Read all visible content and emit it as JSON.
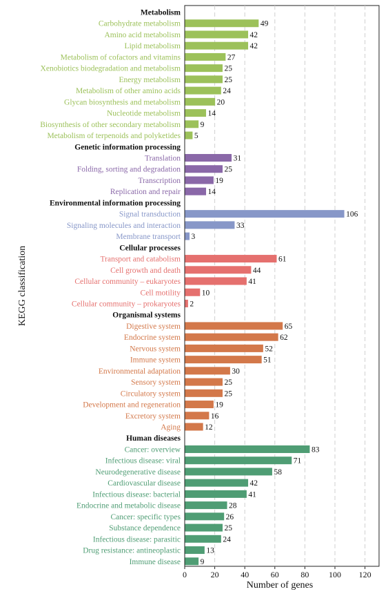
{
  "chart_data": {
    "type": "bar",
    "orientation": "horizontal",
    "xlabel": "Number of genes",
    "ylabel": "KEGG classification",
    "xlim": [
      0,
      130
    ],
    "xticks": [
      "0",
      "20",
      "40",
      "60",
      "80",
      "100",
      "120"
    ],
    "grid": "vertical dashed",
    "colors": {
      "Metabolism": "#9cc15a",
      "Genetic information processing": "#8a68a8",
      "Environmental information processing": "#8797c8",
      "Cellular processes": "#e5706e",
      "Organismal systems": "#d3784a",
      "Human diseases": "#4f9d74"
    },
    "groups": [
      {
        "name": "Metabolism",
        "items": [
          {
            "label": "Carbohydrate metabolism",
            "value": 49
          },
          {
            "label": "Amino acid metabolism",
            "value": 42
          },
          {
            "label": "Lipid metabolism",
            "value": 42
          },
          {
            "label": "Metabolism of cofactors and vitamins",
            "value": 27
          },
          {
            "label": "Xenobiotics biodegradation and metabolism",
            "value": 25
          },
          {
            "label": "Energy metabolism",
            "value": 25
          },
          {
            "label": "Metabolism of other amino acids",
            "value": 24
          },
          {
            "label": "Glycan biosynthesis and metabolism",
            "value": 20
          },
          {
            "label": "Nucleotide metabolism",
            "value": 14
          },
          {
            "label": "Biosynthesis of other secondary metabolism",
            "value": 9
          },
          {
            "label": "Metabolism of terpenoids and polyketides",
            "value": 5
          }
        ]
      },
      {
        "name": "Genetic information processing",
        "items": [
          {
            "label": "Translation",
            "value": 31
          },
          {
            "label": "Folding, sorting and degradation",
            "value": 25
          },
          {
            "label": "Transcription",
            "value": 19
          },
          {
            "label": "Replication and repair",
            "value": 14
          }
        ]
      },
      {
        "name": "Environmental information processing",
        "items": [
          {
            "label": "Signal transduction",
            "value": 106
          },
          {
            "label": "Signaling molecules and interaction",
            "value": 33
          },
          {
            "label": "Membrane transport",
            "value": 3
          }
        ]
      },
      {
        "name": "Cellular processes",
        "items": [
          {
            "label": "Transport and catabolism",
            "value": 61
          },
          {
            "label": "Cell growth and death",
            "value": 44
          },
          {
            "label": "Cellular community – eukaryotes",
            "value": 41
          },
          {
            "label": "Cell motility",
            "value": 10
          },
          {
            "label": "Cellular community – prokaryotes",
            "value": 2
          }
        ]
      },
      {
        "name": "Organismal systems",
        "items": [
          {
            "label": "Digestive system",
            "value": 65
          },
          {
            "label": "Endocrine system",
            "value": 62
          },
          {
            "label": "Nervous system",
            "value": 52
          },
          {
            "label": "Immune system",
            "value": 51
          },
          {
            "label": "Environmental adaptation",
            "value": 30
          },
          {
            "label": "Sensory system",
            "value": 25
          },
          {
            "label": "Circulatory system",
            "value": 25
          },
          {
            "label": "Development and regeneration",
            "value": 19
          },
          {
            "label": "Excretory system",
            "value": 16
          },
          {
            "label": "Aging",
            "value": 12
          }
        ]
      },
      {
        "name": "Human diseases",
        "items": [
          {
            "label": "Cancer: overview",
            "value": 83
          },
          {
            "label": "Infectious disease: viral",
            "value": 71
          },
          {
            "label": "Neurodegenerative disease",
            "value": 58
          },
          {
            "label": "Cardiovascular disease",
            "value": 42
          },
          {
            "label": "Infectious disease: bacterial",
            "value": 41
          },
          {
            "label": "Endocrine and metabolic disease",
            "value": 28
          },
          {
            "label": "Cancer: specific types",
            "value": 26
          },
          {
            "label": "Substance dependence",
            "value": 25
          },
          {
            "label": "Infectious disease: parasitic",
            "value": 24
          },
          {
            "label": "Drug resistance: antineoplastic",
            "value": 13
          },
          {
            "label": "Immune disease",
            "value": 9
          }
        ]
      }
    ]
  }
}
